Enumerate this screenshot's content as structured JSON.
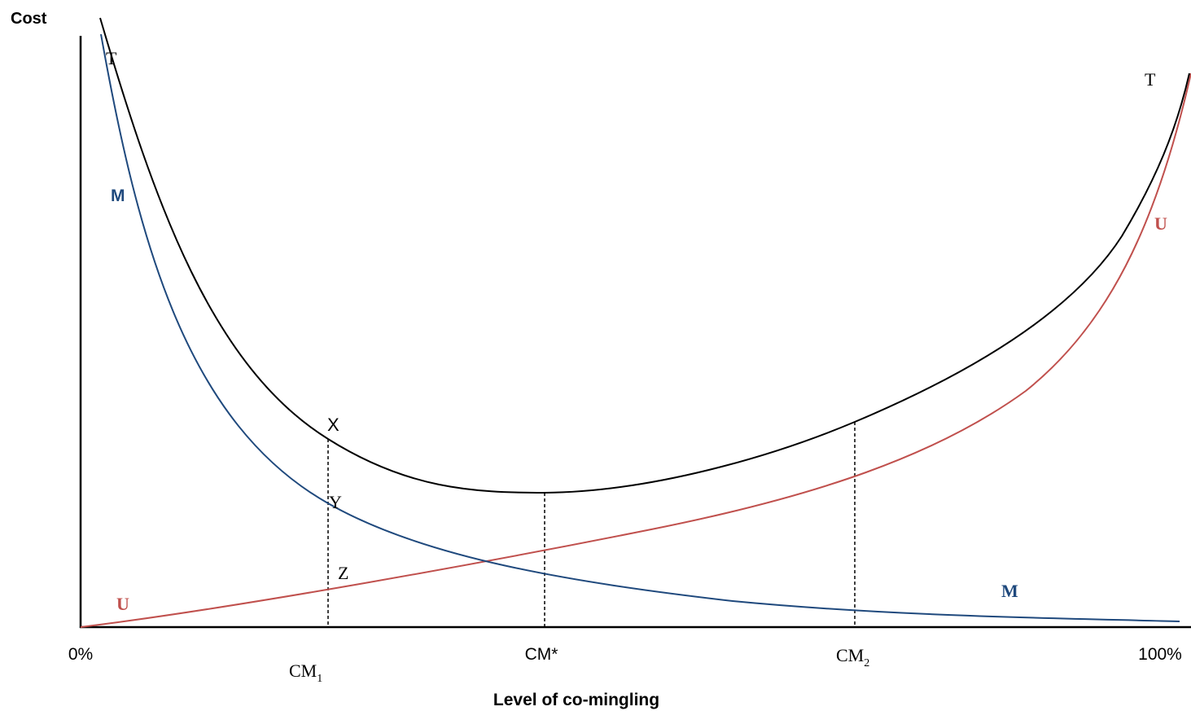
{
  "axes": {
    "y_title": "Cost",
    "x_title": "Level of co-mingling",
    "x_start": "0%",
    "x_end": "100%"
  },
  "markers": {
    "cm1_base": "CM",
    "cm1_sub": "1",
    "cm_star": "CM*",
    "cm2_base": "CM",
    "cm2_sub": "2"
  },
  "points": {
    "x": "X",
    "y": "Y",
    "z": "Z"
  },
  "curves": {
    "total": {
      "label": "T",
      "color": "#000000"
    },
    "mingling": {
      "label": "M",
      "color": "#1f497d"
    },
    "unmingling": {
      "label": "U",
      "color": "#c0504d"
    }
  }
}
